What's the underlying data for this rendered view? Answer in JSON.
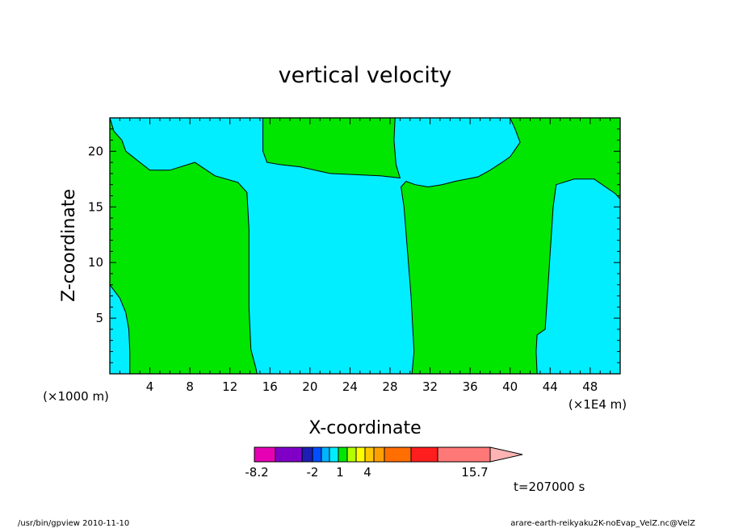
{
  "chart_data": {
    "type": "heatmap",
    "title": "vertical velocity",
    "xlabel": "X-coordinate",
    "ylabel": "Z-coordinate",
    "x_multiplier_label": "(×1000 m)",
    "x_unit_label": "(×1E4 m)",
    "xlim": [
      0,
      51
    ],
    "ylim": [
      0,
      23
    ],
    "x_ticks": [
      "4",
      "8",
      "12",
      "16",
      "20",
      "24",
      "28",
      "32",
      "36",
      "40",
      "44",
      "48"
    ],
    "y_ticks": [
      "5",
      "10",
      "15",
      "20"
    ],
    "regions": [
      {
        "name": "negative",
        "color": "#00eeff",
        "polygon": [
          [
            0,
            0
          ],
          [
            51,
            0
          ],
          [
            51,
            23
          ],
          [
            0,
            23
          ]
        ]
      },
      {
        "name": "positive",
        "color": "#00e600",
        "polygon": [
          [
            0,
            23
          ],
          [
            0.4,
            21.8
          ],
          [
            1.2,
            21
          ],
          [
            1.6,
            20
          ],
          [
            3,
            19
          ],
          [
            4,
            18.3
          ],
          [
            6,
            18.3
          ],
          [
            8.5,
            19
          ],
          [
            10.5,
            17.8
          ],
          [
            12.8,
            17.2
          ],
          [
            13.7,
            16.3
          ],
          [
            13.9,
            13
          ],
          [
            13.9,
            6
          ],
          [
            14.1,
            2.2
          ],
          [
            14.6,
            0.5
          ],
          [
            14.7,
            0
          ],
          [
            2,
            0
          ],
          [
            2,
            2
          ],
          [
            1.9,
            4
          ],
          [
            1.6,
            5.5
          ],
          [
            1,
            6.8
          ],
          [
            0,
            8
          ],
          [
            0,
            23
          ]
        ]
      },
      {
        "name": "positive",
        "color": "#00e600",
        "polygon": [
          [
            15.3,
            23
          ],
          [
            15.3,
            20
          ],
          [
            15.7,
            19
          ],
          [
            17,
            18.8
          ],
          [
            19,
            18.6
          ],
          [
            22,
            18
          ],
          [
            27,
            17.8
          ],
          [
            29,
            17.6
          ],
          [
            28.6,
            18.8
          ],
          [
            28.4,
            21
          ],
          [
            28.5,
            23
          ]
        ]
      },
      {
        "name": "positive",
        "color": "#00e600",
        "polygon": [
          [
            29.1,
            16.8
          ],
          [
            29.4,
            15
          ],
          [
            30.1,
            7
          ],
          [
            30.4,
            2
          ],
          [
            30.2,
            0
          ],
          [
            42.7,
            0
          ],
          [
            42.6,
            2
          ],
          [
            42.7,
            3.5
          ],
          [
            43.5,
            4
          ],
          [
            44.3,
            15
          ],
          [
            44.6,
            17
          ],
          [
            46.4,
            17.5
          ],
          [
            48.4,
            17.5
          ],
          [
            50.5,
            16.2
          ],
          [
            51,
            15.7
          ],
          [
            51,
            23
          ],
          [
            40,
            23
          ],
          [
            40.5,
            22
          ],
          [
            41,
            20.8
          ],
          [
            40,
            19.5
          ],
          [
            39.2,
            19
          ],
          [
            38,
            18.3
          ],
          [
            36.8,
            17.7
          ],
          [
            34.5,
            17.3
          ],
          [
            33.2,
            17
          ],
          [
            31.8,
            16.8
          ],
          [
            30.5,
            17
          ],
          [
            29.6,
            17.3
          ]
        ]
      }
    ],
    "contour": {
      "color": "#000000"
    },
    "colorbar": {
      "colors": [
        "#e600b4",
        "#8000c8",
        "#1e1eb4",
        "#0050ff",
        "#00b4ff",
        "#00eeff",
        "#00e600",
        "#b4ff00",
        "#ffff00",
        "#ffc800",
        "#ffa000",
        "#ff6e00",
        "#ff1e1e",
        "#ff7878",
        "#ffb4b4"
      ],
      "tick_labels": [
        "-8.2",
        "-2",
        "1",
        "4",
        "15.7"
      ]
    },
    "time_label": "t=207000 s",
    "footer_left": "/usr/bin/gpview  2010-11-10",
    "footer_right": "arare-earth-reikyaku2K-noEvap_VelZ.nc@VelZ"
  }
}
